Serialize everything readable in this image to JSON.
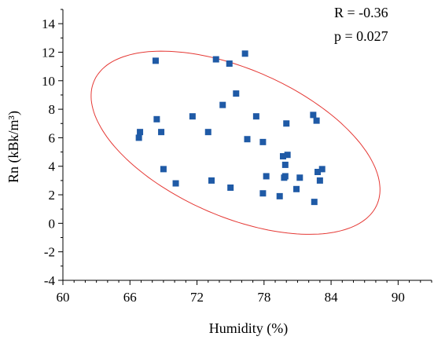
{
  "chart_data": {
    "type": "scatter",
    "xlabel": "Humidity (%)",
    "ylabel": "Rn (kBk/m³)",
    "xlim": [
      60,
      93
    ],
    "ylim": [
      -4,
      15
    ],
    "xticks": [
      "60",
      "66",
      "72",
      "78",
      "84",
      "90"
    ],
    "yticks": [
      "-4",
      "-2",
      "0",
      "2",
      "4",
      "6",
      "8",
      "10",
      "12",
      "14"
    ],
    "annotations": [
      "R = -0.36",
      "p = 0.027"
    ],
    "marker_color": "#1f5aa6",
    "ellipse_color": "#e53935",
    "points": [
      [
        66.8,
        6.0
      ],
      [
        66.9,
        6.4
      ],
      [
        68.3,
        11.4
      ],
      [
        68.4,
        7.3
      ],
      [
        68.8,
        6.4
      ],
      [
        69.0,
        3.8
      ],
      [
        70.1,
        2.8
      ],
      [
        71.6,
        7.5
      ],
      [
        73.0,
        6.4
      ],
      [
        73.3,
        3.0
      ],
      [
        73.7,
        11.5
      ],
      [
        74.3,
        8.3
      ],
      [
        74.9,
        11.2
      ],
      [
        75.0,
        2.5
      ],
      [
        75.5,
        9.1
      ],
      [
        76.3,
        11.9
      ],
      [
        76.5,
        5.9
      ],
      [
        77.3,
        7.5
      ],
      [
        77.9,
        5.7
      ],
      [
        77.9,
        2.1
      ],
      [
        78.2,
        3.3
      ],
      [
        79.4,
        1.9
      ],
      [
        79.7,
        4.7
      ],
      [
        79.8,
        3.2
      ],
      [
        79.9,
        4.1
      ],
      [
        80.0,
        7.0
      ],
      [
        80.1,
        4.8
      ],
      [
        80.9,
        2.4
      ],
      [
        81.2,
        3.2
      ],
      [
        82.4,
        7.6
      ],
      [
        82.5,
        1.5
      ],
      [
        82.7,
        7.2
      ],
      [
        82.8,
        3.6
      ],
      [
        83.0,
        3.0
      ],
      [
        83.2,
        3.8
      ],
      [
        79.9,
        3.3
      ]
    ],
    "confidence_ellipse": {
      "center": [
        75.45,
        5.65
      ],
      "semi_axes": [
        13.42,
        5.32
      ],
      "rotation_deg": -17.0
    }
  }
}
